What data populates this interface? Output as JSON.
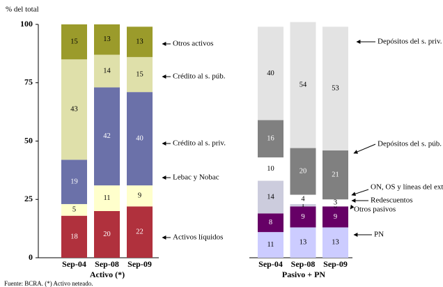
{
  "chart_data": {
    "type": "stacked_bar",
    "y_label": "% del total",
    "ylim": [
      0,
      100
    ],
    "yticks": [
      0,
      25,
      50,
      75,
      100
    ],
    "source": "Fuente: BCRA. (*) Activo neteado.",
    "groups": [
      {
        "label": "Activo (*)",
        "categories": [
          "Sep-04",
          "Sep-08",
          "Sep-09"
        ],
        "series": [
          {
            "name": "Activos líquidos",
            "color": "#b0313d",
            "values": [
              18,
              20,
              22
            ]
          },
          {
            "name": "Lebac y Nobac",
            "color": "#ffffcc",
            "values": [
              5,
              11,
              9
            ]
          },
          {
            "name": "Crédito al s. priv.",
            "color": "#6b71a9",
            "values": [
              19,
              42,
              40
            ]
          },
          {
            "name": "Crédito al s. púb.",
            "color": "#dfe0aa",
            "values": [
              43,
              14,
              15
            ]
          },
          {
            "name": "Otros activos",
            "color": "#9b9b2b",
            "values": [
              15,
              13,
              13
            ]
          }
        ]
      },
      {
        "label": "Pasivo + PN",
        "categories": [
          "Sep-04",
          "Sep-08",
          "Sep-09"
        ],
        "series": [
          {
            "name": "PN",
            "color": "#ccccff",
            "values": [
              11,
              13,
              13
            ]
          },
          {
            "name": "Otros pasivos",
            "color": "#660066",
            "values": [
              8,
              9,
              9
            ]
          },
          {
            "name": "Redescuentos",
            "color": "#ccccdd",
            "values": [
              14,
              1,
              0
            ]
          },
          {
            "name": "ON, OS y líneas del ext.",
            "color": "#ffffff",
            "values": [
              10,
              4,
              3
            ]
          },
          {
            "name": "Depósitos del s. púb.",
            "color": "#808080",
            "values": [
              16,
              20,
              21
            ]
          },
          {
            "name": "Depósitos del s. priv.",
            "color": "#e3e3e3",
            "values": [
              40,
              54,
              53
            ]
          }
        ]
      }
    ]
  }
}
